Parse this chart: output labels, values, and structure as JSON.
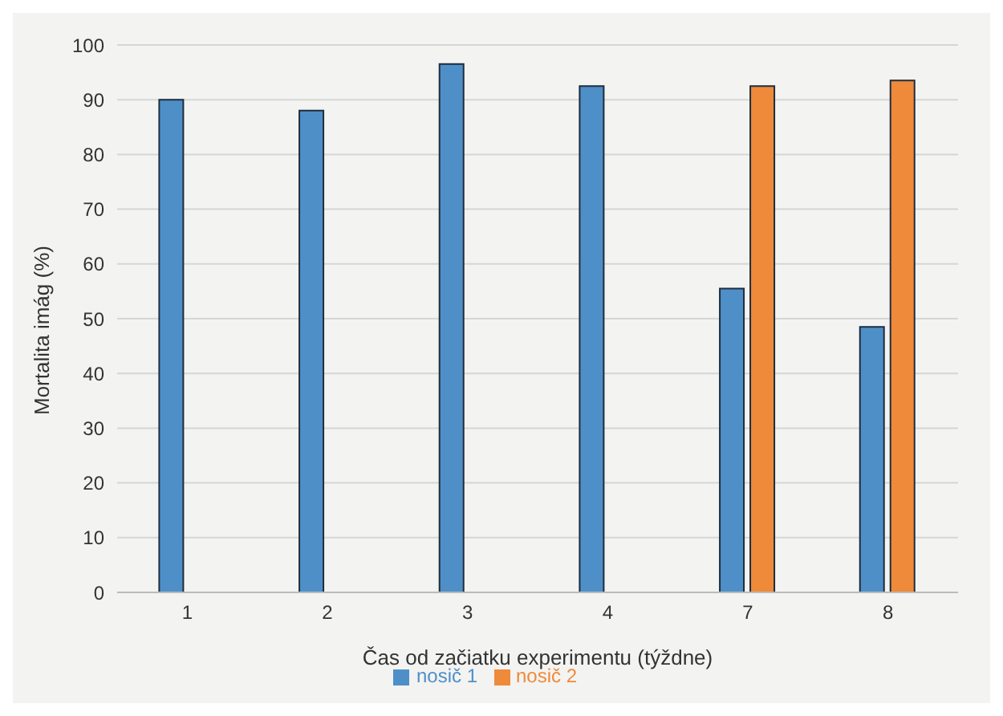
{
  "chart_data": {
    "type": "bar",
    "xlabel": "Čas od začiatku experimentu (týždne)",
    "ylabel": "Mortalita imág (%)",
    "categories": [
      "1",
      "2",
      "3",
      "4",
      "7",
      "8"
    ],
    "series": [
      {
        "name": "nosič 1",
        "color": "#4f8fc8",
        "values": [
          90,
          88,
          96.5,
          92.5,
          55.5,
          48.5
        ]
      },
      {
        "name": "nosič 2",
        "color": "#ef8a3a",
        "values": [
          null,
          null,
          null,
          null,
          92.5,
          93.5
        ]
      }
    ],
    "ylim": [
      0,
      100
    ],
    "yticks": [
      0,
      10,
      20,
      30,
      40,
      50,
      60,
      70,
      80,
      90,
      100
    ],
    "grid": "y",
    "legend": "bottom"
  }
}
